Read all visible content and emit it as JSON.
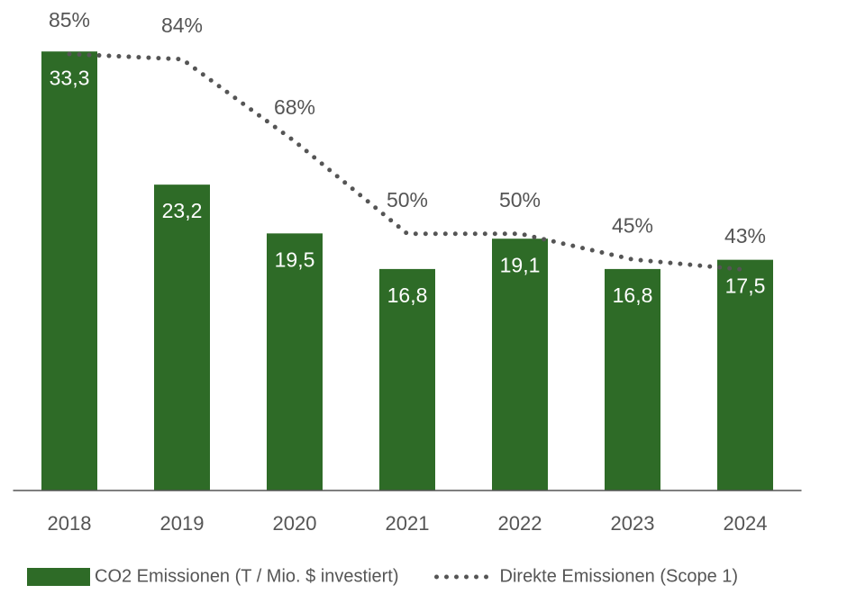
{
  "chart_data": {
    "type": "combo",
    "categories": [
      "2018",
      "2019",
      "2020",
      "2021",
      "2022",
      "2023",
      "2024"
    ],
    "ylim": [
      0,
      37
    ],
    "y2lim": [
      0,
      95
    ],
    "series": [
      {
        "name": "CO2 Emissionen (T / Mio. $ investiert)",
        "type": "bar",
        "color": "#2e6b27",
        "values": [
          33.3,
          23.2,
          19.5,
          16.8,
          19.1,
          16.8,
          17.5
        ],
        "value_labels": [
          "33,3",
          "23,2",
          "19,5",
          "16,8",
          "19,1",
          "16,8",
          "17,5"
        ]
      },
      {
        "name": "Direkte Emissionen (Scope 1)",
        "type": "line",
        "axis": "y2",
        "color": "#555555",
        "values": [
          85,
          84,
          68,
          50,
          50,
          45,
          43
        ],
        "value_labels": [
          "85%",
          "84%",
          "68%",
          "50%",
          "50%",
          "45%",
          "43%"
        ]
      }
    ]
  }
}
